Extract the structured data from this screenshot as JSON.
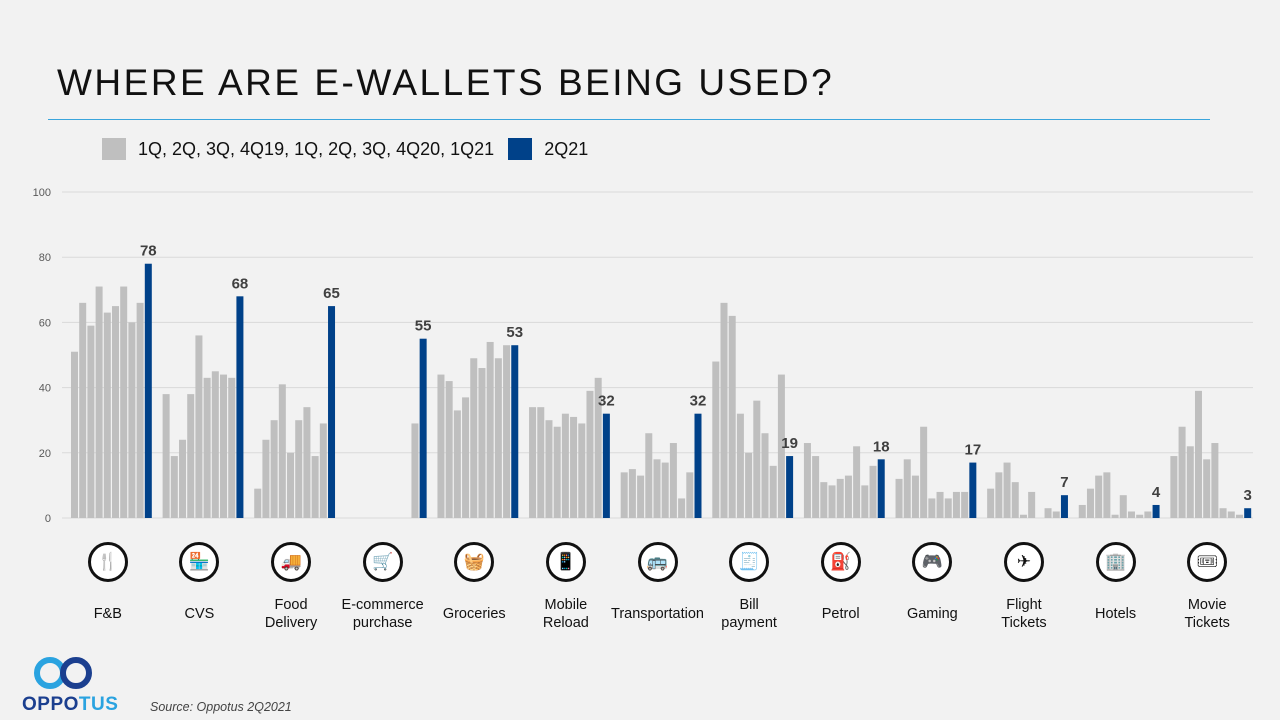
{
  "slide": {
    "title": "WHERE ARE E-WALLETS BEING USED?",
    "source": "Source: Oppotus 2Q2021",
    "brand": {
      "name_part1": "OPPO",
      "name_part2": "TUS",
      "color_dark": "#1b3f8f",
      "color_light": "#2aa3e0"
    },
    "accent_rule_color": "#3aa5dc"
  },
  "chart_data": {
    "type": "bar",
    "title": "WHERE ARE E-WALLETS BEING USED?",
    "xlabel": "",
    "ylabel": "",
    "ylim": [
      0,
      100
    ],
    "yticks": [
      0,
      20,
      40,
      60,
      80,
      100
    ],
    "grid": true,
    "legend_position": "top-left",
    "periods": [
      "1Q19",
      "2Q19",
      "3Q19",
      "4Q19",
      "1Q20",
      "2Q20",
      "3Q20",
      "4Q20",
      "1Q21",
      "2Q21"
    ],
    "legend": [
      {
        "name": "1Q, 2Q, 3Q, 4Q19, 1Q, 2Q, 3Q, 4Q20, 1Q21",
        "color": "#bfbfbf"
      },
      {
        "name": "2Q21",
        "color": "#004189"
      }
    ],
    "categories": [
      {
        "label": "F&B",
        "icon": "cutlery-icon",
        "glyph": "🍴",
        "values": [
          51,
          66,
          59,
          71,
          63,
          65,
          71,
          60,
          66,
          78
        ]
      },
      {
        "label": "CVS",
        "icon": "store-icon",
        "glyph": "🏪",
        "values": [
          38,
          19,
          24,
          38,
          56,
          43,
          45,
          44,
          43,
          68
        ]
      },
      {
        "label": "Food\nDelivery",
        "icon": "delivery-truck-icon",
        "glyph": "🚚",
        "values": [
          9,
          24,
          30,
          41,
          20,
          30,
          34,
          19,
          29,
          65
        ]
      },
      {
        "label": "E-commerce\npurchase",
        "icon": "browser-cart-icon",
        "glyph": "🛒",
        "values": [
          null,
          null,
          null,
          null,
          null,
          null,
          null,
          null,
          29,
          55
        ]
      },
      {
        "label": "Groceries",
        "icon": "basket-icon",
        "glyph": "🧺",
        "values": [
          44,
          42,
          33,
          37,
          49,
          46,
          54,
          49,
          53,
          53
        ]
      },
      {
        "label": "Mobile\nReload",
        "icon": "mobile-phone-icon",
        "glyph": "📱",
        "values": [
          34,
          34,
          30,
          28,
          32,
          31,
          29,
          39,
          43,
          32
        ]
      },
      {
        "label": "Transportation",
        "icon": "car-bus-icon",
        "glyph": "🚌",
        "values": [
          14,
          15,
          13,
          26,
          18,
          17,
          23,
          6,
          14,
          32
        ]
      },
      {
        "label": "Bill\npayment",
        "icon": "bill-icon",
        "glyph": "🧾",
        "values": [
          48,
          66,
          62,
          32,
          20,
          36,
          26,
          16,
          44,
          19
        ]
      },
      {
        "label": "Petrol",
        "icon": "fuel-pump-icon",
        "glyph": "⛽",
        "values": [
          23,
          19,
          11,
          10,
          12,
          13,
          22,
          10,
          16,
          18
        ]
      },
      {
        "label": "Gaming",
        "icon": "gamepad-icon",
        "glyph": "🎮",
        "values": [
          12,
          18,
          13,
          28,
          6,
          8,
          6,
          8,
          8,
          17
        ]
      },
      {
        "label": "Flight\nTickets",
        "icon": "airplane-icon",
        "glyph": "✈",
        "values": [
          9,
          14,
          17,
          11,
          1,
          8,
          0,
          3,
          2,
          7
        ]
      },
      {
        "label": "Hotels",
        "icon": "building-icon",
        "glyph": "🏢",
        "values": [
          4,
          9,
          13,
          14,
          1,
          7,
          2,
          1,
          2,
          4
        ]
      },
      {
        "label": "Movie\nTickets",
        "icon": "ticket-icon",
        "glyph": "🎟",
        "values": [
          19,
          28,
          22,
          39,
          18,
          23,
          3,
          2,
          1,
          3
        ]
      }
    ]
  }
}
